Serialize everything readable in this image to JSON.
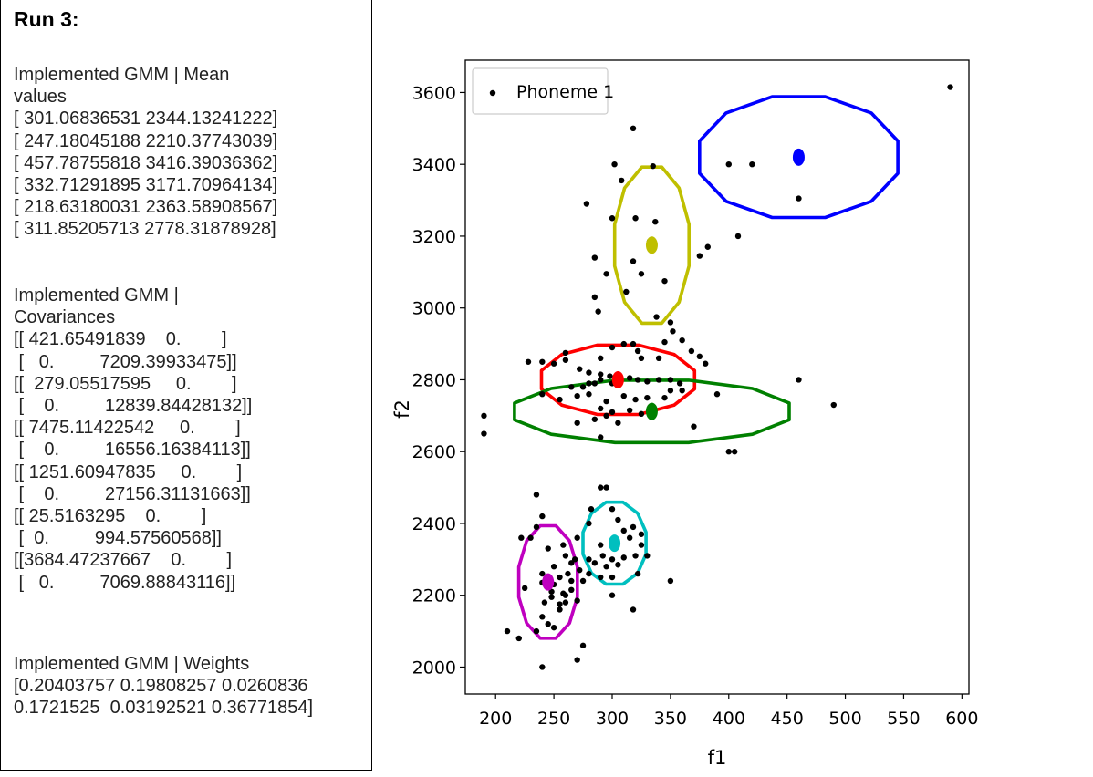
{
  "run_title": "Run 3:",
  "means_block": {
    "lines": [
      "Implemented GMM | Mean",
      "values",
      "[ 301.06836531 2344.13241222]",
      "[ 247.18045188 2210.37743039]",
      "[ 457.78755818 3416.39036362]",
      "[ 332.71291895 3171.70964134]",
      "[ 218.63180031 2363.58908567]",
      "[ 311.85205713 2778.31878928]"
    ]
  },
  "covariances_block": {
    "lines": [
      "Implemented GMM |",
      "Covariances",
      "[[ 421.65491839    0.        ]",
      " [   0.         7209.39933475]]",
      "[[  279.05517595     0.        ]",
      " [    0.         12839.84428132]]",
      "[[ 7475.11422542     0.        ]",
      " [    0.         16556.16384113]]",
      "[[ 1251.60947835     0.        ]",
      " [    0.         27156.31131663]]",
      "[[ 25.5163295    0.        ]",
      " [  0.         994.57560568]]",
      "[[3684.47237667    0.        ]",
      " [   0.         7069.88843116]]"
    ]
  },
  "weights_block": {
    "lines": [
      "Implemented GMM | Weights",
      "[0.20403757 0.19808257 0.0260836",
      "0.1721525  0.03192521 0.36771854]"
    ]
  },
  "chart_data": {
    "type": "scatter",
    "xlabel": "f1",
    "ylabel": "f2",
    "xlim": [
      174,
      606
    ],
    "ylim": [
      1925,
      3690
    ],
    "x_ticks": [
      200,
      250,
      300,
      350,
      400,
      450,
      500,
      550,
      600
    ],
    "y_ticks": [
      2000,
      2200,
      2400,
      2600,
      2800,
      3000,
      3200,
      3400,
      3600
    ],
    "legend": {
      "position": "top-left",
      "entries": [
        "Phoneme 1"
      ]
    },
    "point_color": "#000000",
    "series": [
      {
        "name": "Phoneme 1",
        "points": [
          [
            590,
            3615
          ],
          [
            318,
            3500
          ],
          [
            302,
            3400
          ],
          [
            308,
            3355
          ],
          [
            335,
            3395
          ],
          [
            400,
            3400
          ],
          [
            420,
            3400
          ],
          [
            460,
            3305
          ],
          [
            408,
            3200
          ],
          [
            278,
            3290
          ],
          [
            300,
            3250
          ],
          [
            320,
            3250
          ],
          [
            337,
            3240
          ],
          [
            332,
            3185
          ],
          [
            382,
            3170
          ],
          [
            375,
            3145
          ],
          [
            285,
            3140
          ],
          [
            295,
            3095
          ],
          [
            318,
            3130
          ],
          [
            325,
            3095
          ],
          [
            345,
            3075
          ],
          [
            312,
            3045
          ],
          [
            285,
            3030
          ],
          [
            288,
            2990
          ],
          [
            338,
            2975
          ],
          [
            350,
            2960
          ],
          [
            352,
            2935
          ],
          [
            360,
            2910
          ],
          [
            345,
            2905
          ],
          [
            368,
            2880
          ],
          [
            375,
            2865
          ],
          [
            380,
            2845
          ],
          [
            260,
            2875
          ],
          [
            290,
            2860
          ],
          [
            300,
            2890
          ],
          [
            310,
            2900
          ],
          [
            318,
            2900
          ],
          [
            322,
            2880
          ],
          [
            325,
            2860
          ],
          [
            340,
            2860
          ],
          [
            228,
            2850
          ],
          [
            240,
            2850
          ],
          [
            250,
            2845
          ],
          [
            260,
            2855
          ],
          [
            272,
            2830
          ],
          [
            280,
            2820
          ],
          [
            290,
            2815
          ],
          [
            298,
            2810
          ],
          [
            305,
            2810
          ],
          [
            315,
            2805
          ],
          [
            280,
            2790
          ],
          [
            290,
            2800
          ],
          [
            300,
            2790
          ],
          [
            322,
            2800
          ],
          [
            330,
            2795
          ],
          [
            340,
            2800
          ],
          [
            350,
            2800
          ],
          [
            358,
            2790
          ],
          [
            265,
            2780
          ],
          [
            275,
            2780
          ],
          [
            285,
            2790
          ],
          [
            240,
            2760
          ],
          [
            255,
            2745
          ],
          [
            270,
            2755
          ],
          [
            280,
            2760
          ],
          [
            295,
            2740
          ],
          [
            310,
            2755
          ],
          [
            320,
            2745
          ],
          [
            330,
            2750
          ],
          [
            345,
            2750
          ],
          [
            350,
            2770
          ],
          [
            360,
            2770
          ],
          [
            390,
            2760
          ],
          [
            460,
            2800
          ],
          [
            490,
            2730
          ],
          [
            290,
            2720
          ],
          [
            300,
            2710
          ],
          [
            315,
            2715
          ],
          [
            325,
            2705
          ],
          [
            335,
            2710
          ],
          [
            270,
            2680
          ],
          [
            285,
            2690
          ],
          [
            295,
            2700
          ],
          [
            305,
            2680
          ],
          [
            335,
            2720
          ],
          [
            370,
            2670
          ],
          [
            190,
            2700
          ],
          [
            190,
            2650
          ],
          [
            290,
            2640
          ],
          [
            400,
            2600
          ],
          [
            405,
            2600
          ],
          [
            290,
            2500
          ],
          [
            295,
            2500
          ],
          [
            235,
            2480
          ],
          [
            282,
            2440
          ],
          [
            300,
            2440
          ],
          [
            240,
            2420
          ],
          [
            280,
            2400
          ],
          [
            305,
            2410
          ],
          [
            310,
            2380
          ],
          [
            318,
            2390
          ],
          [
            325,
            2370
          ],
          [
            235,
            2390
          ],
          [
            222,
            2360
          ],
          [
            230,
            2360
          ],
          [
            258,
            2340
          ],
          [
            270,
            2360
          ],
          [
            290,
            2340
          ],
          [
            300,
            2350
          ],
          [
            315,
            2360
          ],
          [
            325,
            2340
          ],
          [
            245,
            2330
          ],
          [
            260,
            2310
          ],
          [
            268,
            2300
          ],
          [
            280,
            2300
          ],
          [
            292,
            2310
          ],
          [
            300,
            2300
          ],
          [
            310,
            2305
          ],
          [
            320,
            2310
          ],
          [
            330,
            2310
          ],
          [
            250,
            2280
          ],
          [
            265,
            2290
          ],
          [
            272,
            2270
          ],
          [
            285,
            2290
          ],
          [
            295,
            2280
          ],
          [
            305,
            2285
          ],
          [
            240,
            2260
          ],
          [
            255,
            2250
          ],
          [
            262,
            2260
          ],
          [
            280,
            2260
          ],
          [
            290,
            2250
          ],
          [
            300,
            2250
          ],
          [
            322,
            2260
          ],
          [
            240,
            2235
          ],
          [
            250,
            2230
          ],
          [
            265,
            2240
          ],
          [
            275,
            2240
          ],
          [
            350,
            2240
          ],
          [
            225,
            2220
          ],
          [
            248,
            2210
          ],
          [
            258,
            2205
          ],
          [
            265,
            2215
          ],
          [
            260,
            2200
          ],
          [
            248,
            2195
          ],
          [
            242,
            2180
          ],
          [
            255,
            2175
          ],
          [
            260,
            2180
          ],
          [
            270,
            2185
          ],
          [
            255,
            2160
          ],
          [
            240,
            2140
          ],
          [
            318,
            2160
          ],
          [
            245,
            2120
          ],
          [
            210,
            2100
          ],
          [
            235,
            2100
          ],
          [
            250,
            2110
          ],
          [
            220,
            2080
          ],
          [
            275,
            2060
          ],
          [
            270,
            2020
          ],
          [
            240,
            2000
          ],
          [
            300,
            2200
          ]
        ]
      }
    ],
    "components": [
      {
        "color": "#0000ff",
        "mean": [
          460,
          3420
        ],
        "radii": [
          88,
          174
        ]
      },
      {
        "color": "#bfbf00",
        "mean": [
          334,
          3175
        ],
        "radii": [
          33,
          225
        ]
      },
      {
        "color": "#ff0000",
        "mean": [
          305,
          2800
        ],
        "radii": [
          68,
          100
        ]
      },
      {
        "color": "#008000",
        "mean": [
          334,
          2712
        ],
        "radii": [
          122,
          90
        ]
      },
      {
        "color": "#00bfbf",
        "mean": [
          302,
          2345
        ],
        "radii": [
          28,
          118
        ]
      },
      {
        "color": "#bf00bf",
        "mean": [
          245,
          2237
        ],
        "radii": [
          26,
          162
        ]
      }
    ]
  }
}
